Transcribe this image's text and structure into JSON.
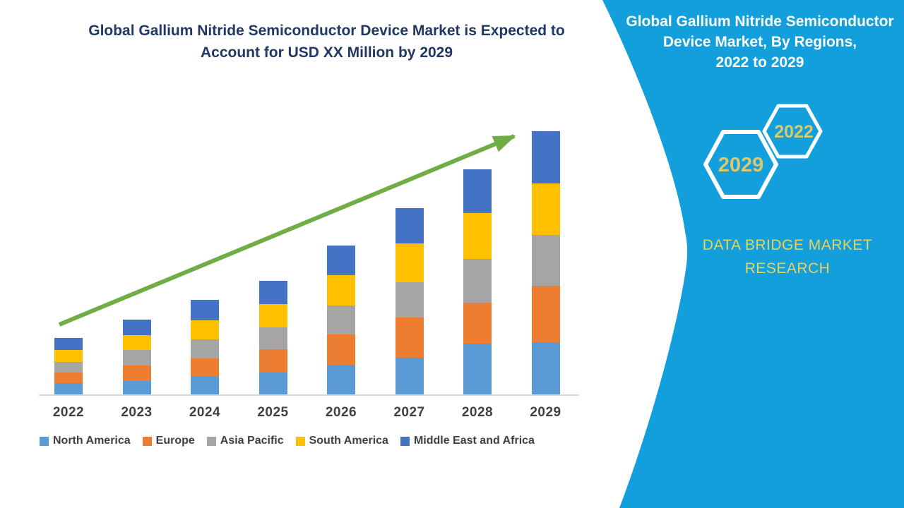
{
  "chart": {
    "title_line1": "Global Gallium Nitride Semiconductor Device Market is Expected to",
    "title_line2": "Account for USD XX Million by 2029",
    "title_color": "#1F3864",
    "arrow_color": "#70AD47"
  },
  "chart_data": {
    "type": "bar",
    "stacked": true,
    "title": "Global Gallium Nitride Semiconductor Device Market is Expected to Account for USD XX Million by 2029",
    "xlabel": "",
    "ylabel": "",
    "y_axis_labeled": false,
    "legend_position": "bottom",
    "trend_arrow": true,
    "categories": [
      "2022",
      "2023",
      "2024",
      "2025",
      "2026",
      "2027",
      "2028",
      "2029"
    ],
    "series": [
      {
        "name": "North America",
        "color": "#5B9BD5",
        "values": [
          17,
          20,
          27,
          32,
          43,
          53,
          73,
          75
        ]
      },
      {
        "name": "Europe",
        "color": "#ED7D31",
        "values": [
          15,
          22,
          25,
          33,
          43,
          57,
          58,
          80
        ]
      },
      {
        "name": "Asia Pacific",
        "color": "#A5A5A5",
        "values": [
          15,
          22,
          27,
          31,
          41,
          50,
          62,
          72
        ]
      },
      {
        "name": "South America",
        "color": "#FFC000",
        "values": [
          17,
          21,
          27,
          33,
          43,
          55,
          65,
          73
        ]
      },
      {
        "name": "Middle East and Africa",
        "color": "#4472C4",
        "values": [
          17,
          22,
          29,
          33,
          42,
          50,
          62,
          74
        ]
      }
    ],
    "totals": [
      81,
      107,
      135,
      162,
      212,
      265,
      320,
      374
    ],
    "value_note": "relative units (axis unlabeled, market value shown as USD XX Million)"
  },
  "sidebar": {
    "panel_color": "#129FDB",
    "title_lines": [
      "Global Gallium Nitride Semiconductor",
      "Device Market, By Regions,",
      "2022 to 2029"
    ],
    "hexagons": [
      "2029",
      "2022"
    ],
    "hex_text_color": "#D7C96E",
    "brand_line1": "DATA BRIDGE MARKET",
    "brand_line2": "RESEARCH",
    "brand_color": "#E7D35B"
  }
}
